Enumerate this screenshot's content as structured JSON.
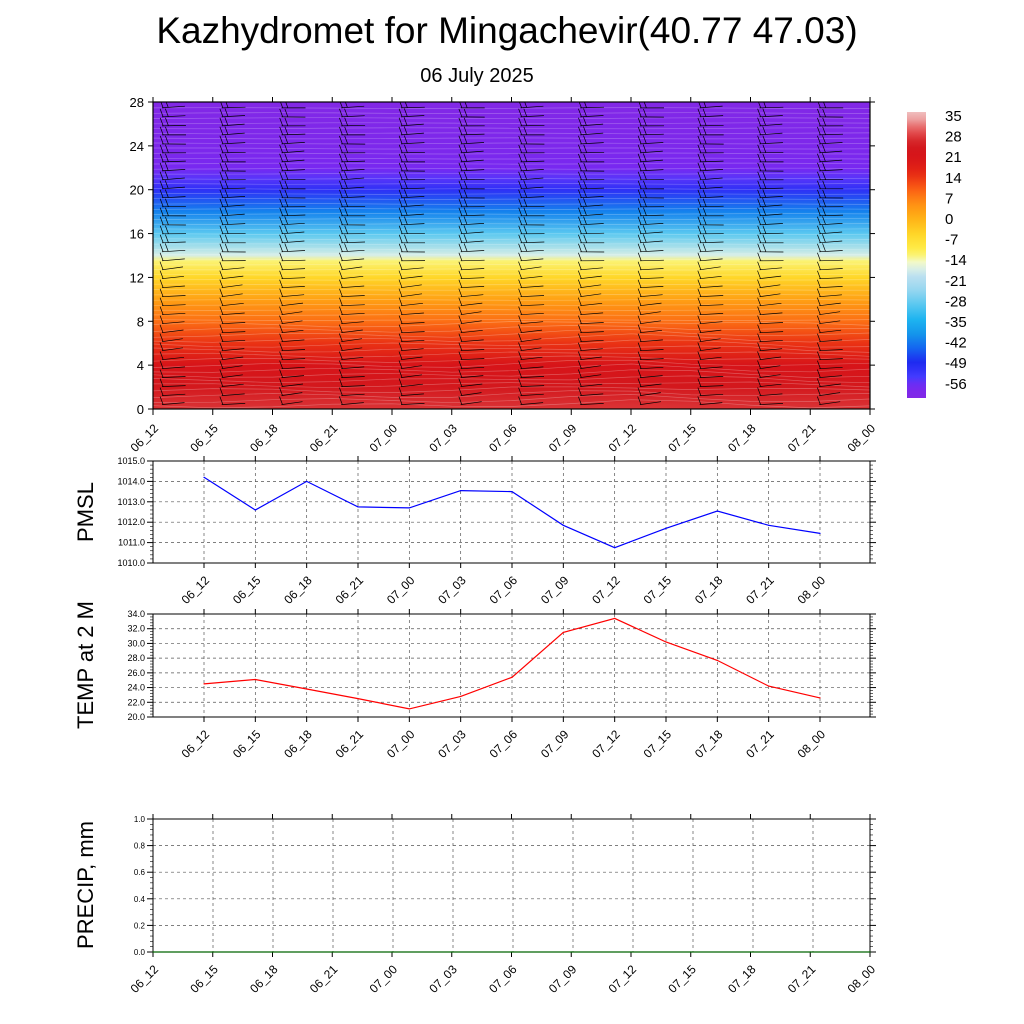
{
  "title": "Kazhydromet for Mingachevir(40.77 47.03)",
  "subtitle": "06 July 2025",
  "time_labels": [
    "06_12",
    "06_15",
    "06_18",
    "06_21",
    "07_00",
    "07_03",
    "07_06",
    "07_09",
    "07_12",
    "07_15",
    "07_18",
    "07_21",
    "08_00"
  ],
  "chart_data": [
    {
      "type": "heatmap",
      "title": "",
      "xlabel": "",
      "ylabel": "",
      "x": [
        "06_12",
        "06_15",
        "06_18",
        "06_21",
        "07_00",
        "07_03",
        "07_06",
        "07_09",
        "07_12",
        "07_15",
        "07_18",
        "07_21",
        "08_00"
      ],
      "y_ticks": [
        0,
        4,
        8,
        12,
        16,
        20,
        24,
        28
      ],
      "ylim": [
        0,
        28
      ],
      "colorbar": {
        "labels": [
          "35",
          "28",
          "21",
          "14",
          "7",
          "0",
          "-7",
          "-14",
          "-21",
          "-28",
          "-35",
          "-42",
          "-49",
          "-56"
        ],
        "values": [
          35,
          28,
          21,
          14,
          7,
          0,
          -7,
          -14,
          -21,
          -28,
          -35,
          -42,
          -49,
          -56
        ]
      },
      "temperature_profile": {
        "heights": [
          0,
          2,
          4,
          6,
          8,
          10,
          12,
          13.5,
          14,
          16,
          18,
          20,
          21,
          22,
          24,
          28
        ],
        "values": [
          27,
          24,
          20,
          14,
          8,
          2,
          -6,
          -13,
          -18,
          -30,
          -42,
          -52,
          -56,
          -58,
          -60,
          -62
        ]
      },
      "wind_barbs": true,
      "grid": false
    },
    {
      "type": "line",
      "title": "",
      "xlabel": "",
      "ylabel": "PMSL",
      "categories": [
        "06_12",
        "06_15",
        "06_18",
        "06_21",
        "07_00",
        "07_03",
        "07_06",
        "07_09",
        "07_12",
        "07_15",
        "07_18",
        "07_21",
        "08_00"
      ],
      "series": [
        {
          "values": [
            1014.2,
            1012.6,
            1014.0,
            1012.75,
            1012.7,
            1013.55,
            1013.5,
            1011.85,
            1010.75,
            1011.7,
            1012.55,
            1011.85,
            1011.45
          ],
          "color": "#0000ff"
        }
      ],
      "ylim": [
        1010.0,
        1015.0
      ],
      "y_ticks": [
        "1010.0",
        "1011.0",
        "1012.0",
        "1013.0",
        "1014.0",
        "1015.0"
      ],
      "grid": true
    },
    {
      "type": "line",
      "title": "",
      "xlabel": "",
      "ylabel": "TEMP at 2 M",
      "categories": [
        "06_12",
        "06_15",
        "06_18",
        "06_21",
        "07_00",
        "07_03",
        "07_06",
        "07_09",
        "07_12",
        "07_15",
        "07_18",
        "07_21",
        "08_00"
      ],
      "series": [
        {
          "values": [
            24.5,
            25.1,
            23.8,
            22.5,
            21.1,
            22.8,
            25.4,
            31.5,
            33.4,
            30.2,
            27.7,
            24.2,
            22.6
          ],
          "color": "#ff0000"
        }
      ],
      "ylim": [
        20.0,
        34.0
      ],
      "y_ticks": [
        "20.0",
        "22.0",
        "24.0",
        "26.0",
        "28.0",
        "30.0",
        "32.0",
        "34.0"
      ],
      "grid": true
    },
    {
      "type": "line",
      "title": "",
      "xlabel": "",
      "ylabel": "PRECIP, mm",
      "categories": [
        "06_12",
        "06_15",
        "06_18",
        "06_21",
        "07_00",
        "07_03",
        "07_06",
        "07_09",
        "07_12",
        "07_15",
        "07_18",
        "07_21",
        "08_00"
      ],
      "series": [
        {
          "values": [
            0,
            0,
            0,
            0,
            0,
            0,
            0,
            0,
            0,
            0,
            0,
            0,
            0
          ],
          "color": "#006400"
        }
      ],
      "ylim": [
        0.0,
        1.0
      ],
      "y_ticks": [
        "0.0",
        "0.2",
        "0.4",
        "0.6",
        "0.8",
        "1.0"
      ],
      "grid": true
    }
  ]
}
